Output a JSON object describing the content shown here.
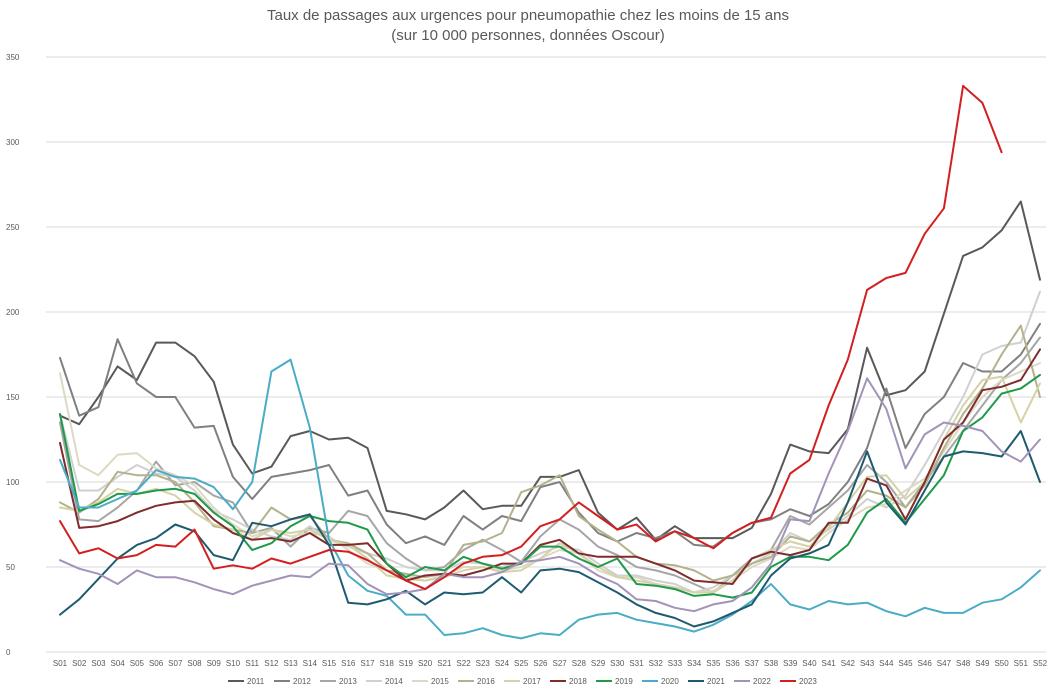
{
  "chart_data": {
    "type": "line",
    "title": "Taux de passages aux urgences pour pneumopathie chez les moins de 15 ans",
    "subtitle": "(sur 10 000 personnes, données Oscour)",
    "xlabel": "",
    "ylabel": "",
    "ylim": [
      0,
      350
    ],
    "yticks": [
      0,
      50,
      100,
      150,
      200,
      250,
      300,
      350
    ],
    "grid": "horizontal",
    "legend_position": "bottom",
    "categories": [
      "S01",
      "S02",
      "S03",
      "S04",
      "S05",
      "S06",
      "S07",
      "S08",
      "S09",
      "S10",
      "S11",
      "S12",
      "S13",
      "S14",
      "S15",
      "S16",
      "S17",
      "S18",
      "S19",
      "S20",
      "S21",
      "S22",
      "S23",
      "S24",
      "S25",
      "S26",
      "S27",
      "S28",
      "S29",
      "S30",
      "S31",
      "S32",
      "S33",
      "S34",
      "S35",
      "S36",
      "S37",
      "S38",
      "S39",
      "S40",
      "S41",
      "S42",
      "S43",
      "S44",
      "S45",
      "S46",
      "S47",
      "S48",
      "S49",
      "S50",
      "S51",
      "S52"
    ],
    "series": [
      {
        "name": "2011",
        "color": "#595959",
        "values": [
          139,
          134,
          150,
          168,
          160,
          182,
          182,
          174,
          159,
          122,
          105,
          109,
          127,
          130,
          125,
          126,
          120,
          83,
          81,
          78,
          85,
          95,
          84,
          86,
          86,
          103,
          103,
          107,
          82,
          72,
          79,
          66,
          74,
          67,
          67,
          67,
          73,
          93,
          122,
          118,
          117,
          131,
          179,
          151,
          154,
          165,
          199,
          233,
          238,
          248,
          265,
          219
        ]
      },
      {
        "name": "2012",
        "color": "#808080",
        "values": [
          173,
          139,
          144,
          184,
          158,
          150,
          150,
          132,
          133,
          103,
          90,
          103,
          105,
          107,
          110,
          92,
          95,
          75,
          64,
          68,
          63,
          80,
          72,
          80,
          77,
          97,
          100,
          82,
          70,
          65,
          70,
          67,
          71,
          63,
          62,
          70,
          76,
          78,
          84,
          80,
          87,
          100,
          120,
          155,
          120,
          140,
          150,
          170,
          165,
          165,
          175,
          193
        ]
      },
      {
        "name": "2013",
        "color": "#a6a6a6",
        "values": [
          135,
          78,
          77,
          85,
          95,
          112,
          98,
          100,
          92,
          88,
          70,
          73,
          62,
          73,
          70,
          83,
          80,
          64,
          55,
          48,
          50,
          60,
          66,
          60,
          53,
          68,
          78,
          72,
          62,
          57,
          50,
          48,
          45,
          40,
          35,
          45,
          55,
          60,
          80,
          75,
          85,
          95,
          110,
          100,
          85,
          100,
          115,
          130,
          145,
          160,
          170,
          185
        ]
      },
      {
        "name": "2014",
        "color": "#d0d0d0",
        "values": [
          140,
          95,
          95,
          103,
          110,
          105,
          103,
          95,
          83,
          78,
          72,
          68,
          66,
          74,
          66,
          62,
          58,
          55,
          50,
          48,
          48,
          53,
          52,
          50,
          53,
          58,
          62,
          60,
          52,
          45,
          45,
          42,
          40,
          35,
          38,
          45,
          52,
          58,
          70,
          65,
          72,
          80,
          90,
          85,
          92,
          110,
          130,
          150,
          175,
          180,
          182,
          212
        ]
      },
      {
        "name": "2015",
        "color": "#ddd9c3",
        "values": [
          164,
          110,
          104,
          116,
          117,
          108,
          104,
          98,
          85,
          75,
          68,
          72,
          68,
          70,
          68,
          60,
          52,
          48,
          45,
          42,
          45,
          50,
          50,
          48,
          50,
          55,
          60,
          58,
          48,
          44,
          44,
          40,
          38,
          35,
          36,
          42,
          50,
          55,
          62,
          60,
          70,
          78,
          85,
          87,
          95,
          102,
          118,
          135,
          150,
          160,
          165,
          170
        ]
      },
      {
        "name": "2016",
        "color": "#b5b18a",
        "values": [
          88,
          82,
          90,
          106,
          104,
          104,
          100,
          88,
          74,
          72,
          70,
          85,
          78,
          80,
          66,
          64,
          58,
          48,
          46,
          44,
          46,
          63,
          65,
          70,
          94,
          98,
          104,
          80,
          72,
          65,
          56,
          52,
          51,
          48,
          42,
          45,
          52,
          56,
          68,
          65,
          75,
          82,
          95,
          92,
          85,
          98,
          120,
          140,
          155,
          175,
          192,
          150
        ]
      },
      {
        "name": "2017",
        "color": "#d6d2a8",
        "values": [
          85,
          83,
          88,
          96,
          93,
          96,
          92,
          82,
          75,
          72,
          66,
          72,
          70,
          72,
          66,
          63,
          55,
          45,
          43,
          42,
          44,
          48,
          50,
          47,
          48,
          55,
          64,
          58,
          50,
          44,
          42,
          40,
          38,
          35,
          35,
          42,
          55,
          60,
          65,
          62,
          73,
          88,
          103,
          104,
          90,
          100,
          125,
          145,
          160,
          162,
          135,
          158
        ]
      },
      {
        "name": "2018",
        "color": "#7f2c2c",
        "values": [
          123,
          73,
          74,
          77,
          82,
          86,
          88,
          89,
          78,
          70,
          66,
          67,
          65,
          70,
          63,
          63,
          64,
          52,
          42,
          45,
          46,
          45,
          48,
          52,
          52,
          63,
          66,
          58,
          56,
          56,
          56,
          52,
          48,
          42,
          41,
          40,
          55,
          59,
          57,
          60,
          76,
          76,
          102,
          98,
          78,
          100,
          125,
          135,
          154,
          156,
          160,
          178
        ]
      },
      {
        "name": "2019",
        "color": "#1f9a4a",
        "values": [
          140,
          83,
          87,
          93,
          93,
          95,
          96,
          93,
          82,
          74,
          60,
          64,
          74,
          80,
          77,
          76,
          72,
          52,
          44,
          50,
          48,
          56,
          52,
          49,
          52,
          62,
          62,
          55,
          50,
          55,
          40,
          39,
          37,
          33,
          34,
          32,
          35,
          50,
          56,
          56,
          54,
          63,
          82,
          90,
          76,
          90,
          104,
          130,
          138,
          152,
          155,
          163
        ]
      },
      {
        "name": "2020",
        "color": "#4bacc6",
        "values": [
          113,
          85,
          85,
          90,
          95,
          107,
          103,
          102,
          97,
          84,
          100,
          165,
          172,
          132,
          66,
          45,
          36,
          33,
          22,
          22,
          10,
          11,
          14,
          10,
          8,
          11,
          10,
          19,
          22,
          23,
          19,
          17,
          15,
          12,
          16,
          22,
          30,
          40,
          28,
          25,
          30,
          28,
          29,
          24,
          21,
          26,
          23,
          23,
          29,
          31,
          38,
          48
        ]
      },
      {
        "name": "2021",
        "color": "#1f5b70",
        "values": [
          22,
          31,
          43,
          55,
          63,
          67,
          75,
          71,
          57,
          54,
          76,
          74,
          78,
          81,
          63,
          29,
          28,
          31,
          36,
          28,
          35,
          34,
          35,
          44,
          35,
          48,
          49,
          47,
          41,
          35,
          28,
          23,
          20,
          15,
          18,
          23,
          28,
          45,
          55,
          58,
          63,
          88,
          118,
          88,
          75,
          95,
          115,
          118,
          117,
          115,
          130,
          100
        ]
      },
      {
        "name": "2022",
        "color": "#a393b8",
        "values": [
          54,
          49,
          46,
          40,
          48,
          44,
          44,
          41,
          37,
          34,
          39,
          42,
          45,
          44,
          52,
          51,
          40,
          34,
          35,
          37,
          46,
          44,
          44,
          47,
          53,
          54,
          56,
          52,
          45,
          40,
          31,
          30,
          26,
          24,
          28,
          30,
          38,
          52,
          78,
          77,
          105,
          130,
          161,
          143,
          108,
          128,
          135,
          133,
          130,
          118,
          112,
          125
        ]
      },
      {
        "name": "2023",
        "color": "#d21f1f",
        "values": [
          77,
          58,
          61,
          55,
          57,
          63,
          62,
          72,
          49,
          51,
          49,
          55,
          52,
          56,
          60,
          59,
          54,
          48,
          42,
          37,
          44,
          52,
          56,
          57,
          62,
          74,
          78,
          88,
          80,
          72,
          75,
          65,
          71,
          67,
          61,
          70,
          76,
          79,
          105,
          113,
          145,
          172,
          213,
          220,
          223,
          246,
          261,
          333,
          323,
          294,
          null,
          null
        ]
      }
    ]
  }
}
